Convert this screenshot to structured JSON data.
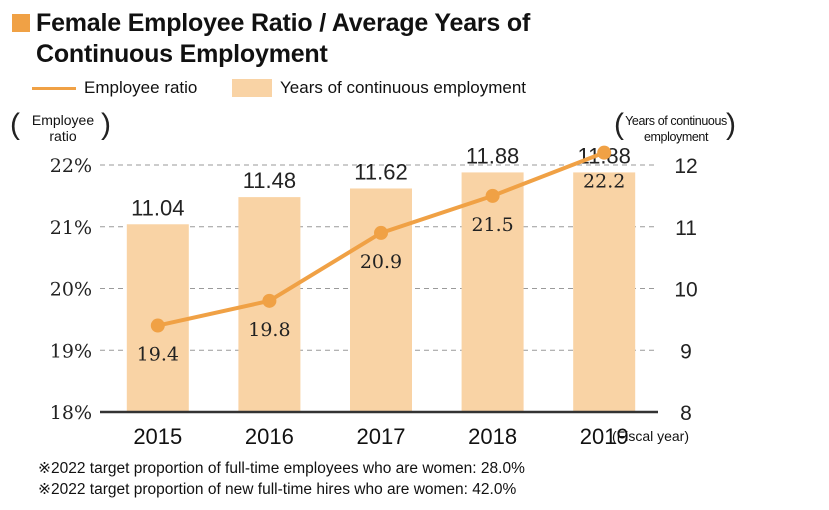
{
  "title": {
    "line1": "Female Employee Ratio / Average Years of",
    "line2": "Continuous Employment"
  },
  "legend": {
    "line_label": "Employee ratio",
    "bar_label": "Years of continuous employment"
  },
  "axes": {
    "left_title_line1": "Employee",
    "left_title_line2": "ratio",
    "right_title_line1": "Years of continuous",
    "right_title_line2": "employment",
    "x_suffix": "(Fiscal year)"
  },
  "notes": [
    "※2022 target proportion of full-time employees who are women: 28.0%",
    "※2022 target proportion of new full-time hires who are women: 42.0%"
  ],
  "colors": {
    "line": "#f0a145",
    "bar": "#f9d3a5",
    "title_square": "#f0a145",
    "axis": "#333333",
    "grid": "#9a9a9a"
  },
  "chart_data": {
    "type": "bar+line",
    "categories": [
      "2015",
      "2016",
      "2017",
      "2018",
      "2019"
    ],
    "series": [
      {
        "name": "Years of continuous employment",
        "type": "bar",
        "axis": "right",
        "values": [
          11.04,
          11.48,
          11.62,
          11.88,
          11.88
        ],
        "labels": [
          "11.04",
          "11.48",
          "11.62",
          "11.88",
          "11.88"
        ]
      },
      {
        "name": "Employee ratio",
        "type": "line",
        "axis": "left",
        "values": [
          19.4,
          19.8,
          20.9,
          21.5,
          22.2
        ],
        "labels": [
          "19.4",
          "19.8",
          "20.9",
          "21.5",
          "22.2"
        ]
      }
    ],
    "left_axis": {
      "ylim": [
        18,
        22
      ],
      "ticks": [
        18,
        19,
        20,
        21,
        22
      ],
      "tick_labels": [
        "18%",
        "19%",
        "20%",
        "21%",
        "22%"
      ]
    },
    "right_axis": {
      "ylim": [
        8,
        12
      ],
      "ticks": [
        8,
        9,
        10,
        11,
        12
      ],
      "tick_labels": [
        "8",
        "9",
        "10",
        "11",
        "12"
      ]
    },
    "grid": true
  }
}
